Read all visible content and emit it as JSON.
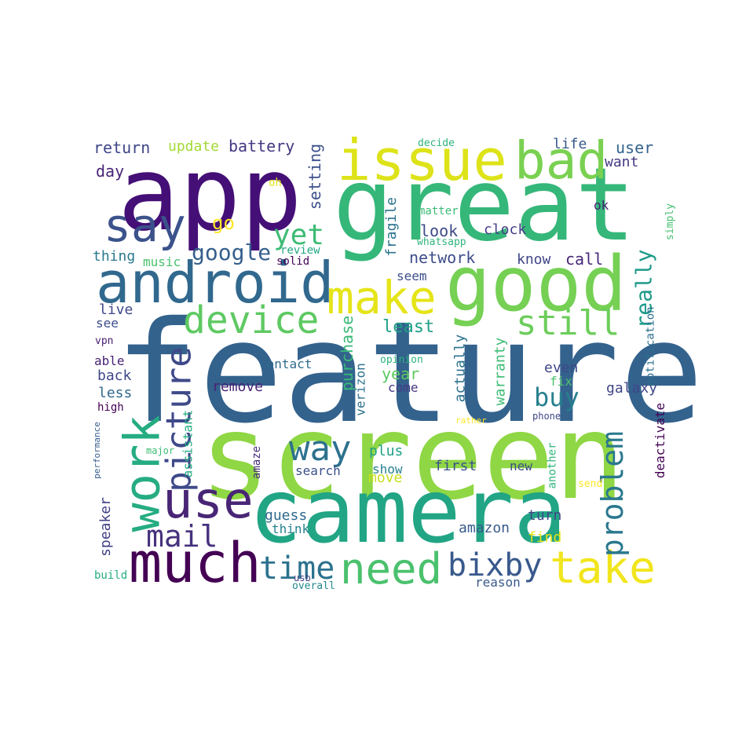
{
  "title": "",
  "words": [
    {
      "text": "feature",
      "color": "#33628d"
    },
    {
      "text": "screen",
      "color": "#8fd744"
    },
    {
      "text": "camera",
      "color": "#21a585"
    },
    {
      "text": "great",
      "color": "#35b779"
    },
    {
      "text": "app",
      "color": "#440f76"
    },
    {
      "text": "good",
      "color": "#75d054"
    },
    {
      "text": "android",
      "color": "#31688e"
    },
    {
      "text": "issue",
      "color": "#dde318"
    },
    {
      "text": "bad",
      "color": "#7ad151"
    },
    {
      "text": "work",
      "color": "#25ac82"
    },
    {
      "text": "much",
      "color": "#440154"
    },
    {
      "text": "make",
      "color": "#e5e419"
    },
    {
      "text": "say",
      "color": "#3b528b"
    },
    {
      "text": "use",
      "color": "#482575"
    },
    {
      "text": "take",
      "color": "#f1e51d"
    },
    {
      "text": "need",
      "color": "#4ac16d"
    },
    {
      "text": "device",
      "color": "#5ec962"
    },
    {
      "text": "still",
      "color": "#6ccd5a"
    },
    {
      "text": "picture",
      "color": "#3e4989"
    },
    {
      "text": "problem",
      "color": "#2a788e"
    },
    {
      "text": "bixby",
      "color": "#38598c"
    },
    {
      "text": "time",
      "color": "#2c728e"
    },
    {
      "text": "mail",
      "color": "#46327e"
    },
    {
      "text": "way",
      "color": "#2d718e"
    },
    {
      "text": "yet",
      "color": "#3dbc74"
    },
    {
      "text": "buy",
      "color": "#277f8e"
    },
    {
      "text": "google",
      "color": "#355f8d"
    },
    {
      "text": "really",
      "color": "#1f9a8a"
    },
    {
      "text": "return",
      "color": "#3f4788"
    },
    {
      "text": "update",
      "color": "#a2da37"
    },
    {
      "text": "battery",
      "color": "#453781"
    },
    {
      "text": "setting",
      "color": "#3c4f8a"
    },
    {
      "text": "user",
      "color": "#33638d"
    },
    {
      "text": "life",
      "color": "#38588c"
    },
    {
      "text": "want",
      "color": "#453882"
    },
    {
      "text": "day",
      "color": "#482576"
    },
    {
      "text": "go",
      "color": "#fde725"
    },
    {
      "text": "look",
      "color": "#3e4a89"
    },
    {
      "text": "fragile",
      "color": "#2c738e"
    },
    {
      "text": "clock",
      "color": "#433e85"
    },
    {
      "text": "ok",
      "color": "#481f70"
    },
    {
      "text": "oh",
      "color": "#e2e418"
    },
    {
      "text": "matter",
      "color": "#3bbb75"
    },
    {
      "text": "whatsapp",
      "color": "#2fb47c"
    },
    {
      "text": "review",
      "color": "#22a884"
    },
    {
      "text": "solid",
      "color": "#440356"
    },
    {
      "text": "simply",
      "color": "#46c06f"
    },
    {
      "text": "decide",
      "color": "#2eb37c"
    },
    {
      "text": "thing",
      "color": "#2a788e"
    },
    {
      "text": "music",
      "color": "#4ac16d"
    },
    {
      "text": "network",
      "color": "#3e4c8a"
    },
    {
      "text": "know",
      "color": "#404588"
    },
    {
      "text": "call",
      "color": "#482878"
    },
    {
      "text": "seem",
      "color": "#3d4e8a"
    },
    {
      "text": "live",
      "color": "#3f4889"
    },
    {
      "text": "see",
      "color": "#3d4d8a"
    },
    {
      "text": "purchase",
      "color": "#38b977"
    },
    {
      "text": "least",
      "color": "#1fa088"
    },
    {
      "text": "vpn",
      "color": "#481c6e"
    },
    {
      "text": "actually",
      "color": "#2c738e"
    },
    {
      "text": "warranty",
      "color": "#3dbc74"
    },
    {
      "text": "notification",
      "color": "#2d708e"
    },
    {
      "text": "able",
      "color": "#482374"
    },
    {
      "text": "contact",
      "color": "#2f6b8e"
    },
    {
      "text": "opinion",
      "color": "#2db27d"
    },
    {
      "text": "even",
      "color": "#3f4788"
    },
    {
      "text": "back",
      "color": "#3f4889"
    },
    {
      "text": "verizon",
      "color": "#2c728e"
    },
    {
      "text": "year",
      "color": "#5ec962"
    },
    {
      "text": "fix",
      "color": "#4ac16d"
    },
    {
      "text": "remove",
      "color": "#482475"
    },
    {
      "text": "less",
      "color": "#30698e"
    },
    {
      "text": "come",
      "color": "#443983"
    },
    {
      "text": "galaxy",
      "color": "#404688"
    },
    {
      "text": "high",
      "color": "#440154"
    },
    {
      "text": "assistant",
      "color": "#26ad81"
    },
    {
      "text": "deactivate",
      "color": "#440154"
    },
    {
      "text": "phone",
      "color": "#3f4788"
    },
    {
      "text": "performance",
      "color": "#365c8d"
    },
    {
      "text": "rather",
      "color": "#fde725"
    },
    {
      "text": "major",
      "color": "#3bbb75"
    },
    {
      "text": "plus",
      "color": "#1fa187"
    },
    {
      "text": "amaze",
      "color": "#472d7b"
    },
    {
      "text": "first",
      "color": "#3b528b"
    },
    {
      "text": "new",
      "color": "#3e4c8a"
    },
    {
      "text": "another",
      "color": "#2fb47c"
    },
    {
      "text": "search",
      "color": "#3b518b"
    },
    {
      "text": "show",
      "color": "#26818e"
    },
    {
      "text": "move",
      "color": "#c8e020"
    },
    {
      "text": "send",
      "color": "#fde725"
    },
    {
      "text": "speaker",
      "color": "#424186"
    },
    {
      "text": "guess",
      "color": "#306a8e"
    },
    {
      "text": "think",
      "color": "#26828e"
    },
    {
      "text": "amazon",
      "color": "#375a8c"
    },
    {
      "text": "turn",
      "color": "#3f4788"
    },
    {
      "text": "find",
      "color": "#e5e419"
    },
    {
      "text": "build",
      "color": "#27ad81"
    },
    {
      "text": "usb",
      "color": "#424186"
    },
    {
      "text": "overall",
      "color": "#23898e"
    },
    {
      "text": "reason",
      "color": "#38598c"
    }
  ]
}
